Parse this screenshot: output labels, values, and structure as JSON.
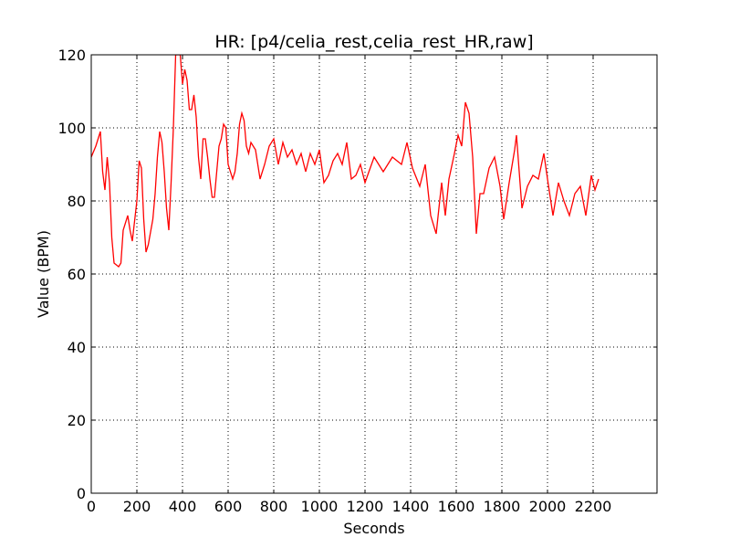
{
  "chart_data": {
    "type": "line",
    "title": "HR: [p4/celia_rest,celia_rest_HR,raw]",
    "xlabel": "Seconds",
    "ylabel": "Value (BPM)",
    "x": [
      0,
      20,
      40,
      50,
      60,
      70,
      80,
      90,
      100,
      120,
      130,
      140,
      160,
      170,
      180,
      200,
      210,
      220,
      230,
      240,
      250,
      270,
      280,
      290,
      300,
      310,
      320,
      330,
      340,
      350,
      360,
      370,
      390,
      400,
      410,
      420,
      430,
      440,
      450,
      460,
      470,
      480,
      490,
      500,
      510,
      520,
      530,
      540,
      550,
      560,
      570,
      580,
      590,
      600,
      620,
      630,
      640,
      650,
      660,
      670,
      680,
      690,
      700,
      720,
      740,
      760,
      780,
      800,
      820,
      840,
      860,
      880,
      900,
      920,
      940,
      960,
      980,
      1000,
      1020,
      1040,
      1060,
      1080,
      1100,
      1120,
      1140,
      1160,
      1180,
      1200,
      1240,
      1280,
      1320,
      1360,
      1384,
      1408,
      1440,
      1464,
      1488,
      1512,
      1536,
      1552,
      1568,
      1592,
      1608,
      1624,
      1640,
      1656,
      1672,
      1688,
      1704,
      1720,
      1744,
      1768,
      1792,
      1808,
      1832,
      1856,
      1864,
      1888,
      1912,
      1936,
      1960,
      1984,
      2000,
      2024,
      2048,
      2072,
      2096,
      2120,
      2144,
      2168,
      2192,
      2208,
      2224
    ],
    "series": [
      {
        "name": "HR",
        "color": "#ff0000",
        "values": [
          92,
          95,
          99,
          88,
          83,
          92,
          85,
          70,
          63,
          62,
          63,
          72,
          76,
          72,
          69,
          80,
          91,
          89,
          75,
          66,
          68,
          75,
          82,
          92,
          99,
          96,
          88,
          78,
          72,
          85,
          100,
          120,
          120,
          112,
          116,
          113,
          105,
          105,
          109,
          103,
          92,
          86,
          97,
          97,
          92,
          86,
          81,
          81,
          88,
          95,
          97,
          101,
          100,
          90,
          86,
          88,
          93,
          101,
          104,
          102,
          95,
          93,
          96,
          94,
          86,
          90,
          95,
          97,
          90,
          96,
          92,
          94,
          90,
          93,
          88,
          93,
          90,
          94,
          85,
          87,
          91,
          93,
          90,
          96,
          86,
          87,
          90,
          85,
          92,
          88,
          92,
          90,
          96,
          89,
          84,
          90,
          76,
          71,
          85,
          76,
          86,
          93,
          98,
          95,
          107,
          104,
          92,
          71,
          82,
          82,
          89,
          92,
          84,
          75,
          85,
          94,
          98,
          78,
          84,
          87,
          86,
          93,
          86,
          76,
          85,
          80,
          76,
          82,
          84,
          76,
          87,
          83,
          86
        ]
      }
    ],
    "xlim": [
      0,
      2480
    ],
    "ylim": [
      0,
      120
    ],
    "xticks": [
      0,
      200,
      400,
      600,
      800,
      1000,
      1200,
      1400,
      1600,
      1800,
      2000,
      2200
    ],
    "yticks": [
      0,
      20,
      40,
      60,
      80,
      100,
      120
    ],
    "grid": true
  }
}
